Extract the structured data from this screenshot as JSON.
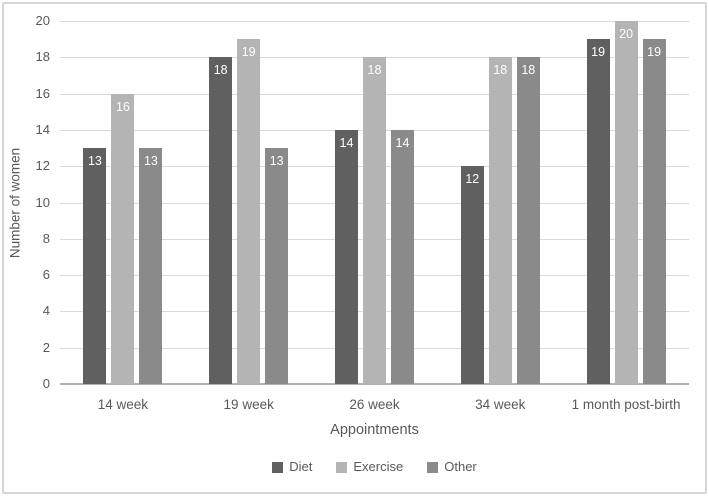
{
  "chart_data": {
    "type": "bar",
    "categories": [
      "14 week",
      "19 week",
      "26 week",
      "34 week",
      "1 month post-birth"
    ],
    "series": [
      {
        "name": "Diet",
        "color": "#606060",
        "values": [
          13,
          18,
          14,
          12,
          19
        ]
      },
      {
        "name": "Exercise",
        "color": "#b4b4b4",
        "values": [
          16,
          19,
          18,
          18,
          20
        ]
      },
      {
        "name": "Other",
        "color": "#8a8a8a",
        "values": [
          13,
          13,
          14,
          18,
          19
        ]
      }
    ],
    "xlabel": "Appointments",
    "ylabel": "Number of women",
    "ylim": [
      0,
      20
    ],
    "ytick_step": 2,
    "yticks": [
      "0",
      "2",
      "4",
      "6",
      "8",
      "10",
      "12",
      "14",
      "16",
      "18",
      "20"
    ],
    "grid": true,
    "legend_position": "bottom",
    "data_labels": "inside-end",
    "colors": {
      "data_label_text": "#ffffff",
      "axis_text": "#595959",
      "gridline": "#d9d9d9",
      "axis_line": "#b3b3b3",
      "frame_border": "#d6d6d6",
      "background": "#ffffff"
    }
  }
}
